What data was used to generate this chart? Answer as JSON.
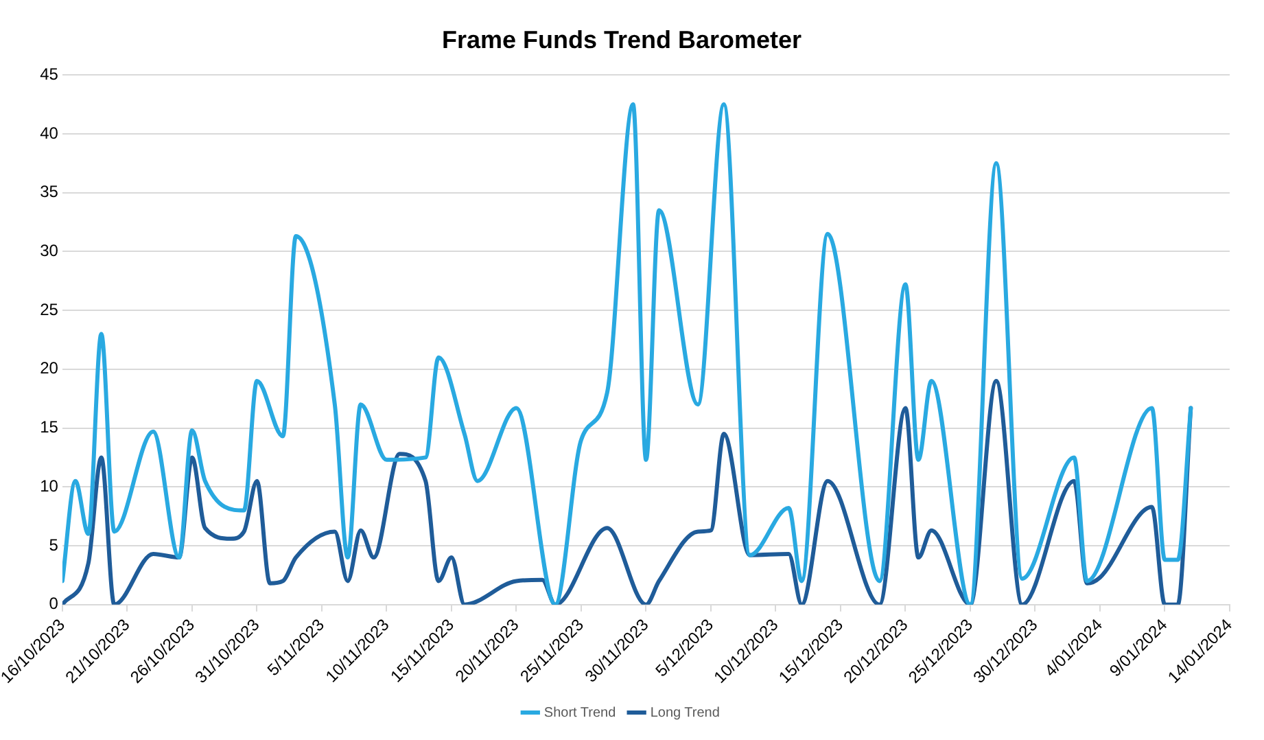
{
  "chart_data": {
    "type": "line",
    "title": "Frame Funds Trend Barometer",
    "xlim": [
      "2023-10-16",
      "2024-01-14"
    ],
    "xticks": [
      {
        "value": "2023-10-16",
        "label": "16/10/2023"
      },
      {
        "value": "2023-10-21",
        "label": "21/10/2023"
      },
      {
        "value": "2023-10-26",
        "label": "26/10/2023"
      },
      {
        "value": "2023-10-31",
        "label": "31/10/2023"
      },
      {
        "value": "2023-11-05",
        "label": "5/11/2023"
      },
      {
        "value": "2023-11-10",
        "label": "10/11/2023"
      },
      {
        "value": "2023-11-15",
        "label": "15/11/2023"
      },
      {
        "value": "2023-11-20",
        "label": "20/11/2023"
      },
      {
        "value": "2023-11-25",
        "label": "25/11/2023"
      },
      {
        "value": "2023-11-30",
        "label": "30/11/2023"
      },
      {
        "value": "2023-12-05",
        "label": "5/12/2023"
      },
      {
        "value": "2023-12-10",
        "label": "10/12/2023"
      },
      {
        "value": "2023-12-15",
        "label": "15/12/2023"
      },
      {
        "value": "2023-12-20",
        "label": "20/12/2023"
      },
      {
        "value": "2023-12-25",
        "label": "25/12/2023"
      },
      {
        "value": "2023-12-30",
        "label": "30/12/2023"
      },
      {
        "value": "2024-01-04",
        "label": "4/01/2024"
      },
      {
        "value": "2024-01-09",
        "label": "9/01/2024"
      },
      {
        "value": "2024-01-14",
        "label": "14/01/2024"
      }
    ],
    "ylim": [
      0,
      45
    ],
    "yticks": [
      0,
      5,
      10,
      15,
      20,
      25,
      30,
      35,
      40,
      45
    ],
    "grid": "y",
    "legend": "bottom",
    "marker": "none",
    "line_style": "solid",
    "series": [
      {
        "name": "Short Trend",
        "color": "#29a9e1",
        "x": [
          "2023-10-16",
          "2023-10-17",
          "2023-10-18",
          "2023-10-19",
          "2023-10-20",
          "2023-10-23",
          "2023-10-25",
          "2023-10-26",
          "2023-10-27",
          "2023-10-30",
          "2023-10-31",
          "2023-11-02",
          "2023-11-03",
          "2023-11-06",
          "2023-11-07",
          "2023-11-08",
          "2023-11-10",
          "2023-11-13",
          "2023-11-14",
          "2023-11-16",
          "2023-11-17",
          "2023-11-20",
          "2023-11-23",
          "2023-11-25",
          "2023-11-27",
          "2023-11-29",
          "2023-11-30",
          "2023-12-01",
          "2023-12-04",
          "2023-12-06",
          "2023-12-08",
          "2023-12-11",
          "2023-12-12",
          "2023-12-14",
          "2023-12-18",
          "2023-12-20",
          "2023-12-21",
          "2023-12-22",
          "2023-12-25",
          "2023-12-27",
          "2023-12-29",
          "2024-01-02",
          "2024-01-03",
          "2024-01-08",
          "2024-01-09",
          "2024-01-10",
          "2024-01-11"
        ],
        "values": [
          2,
          10.5,
          6,
          23,
          6.2,
          14.7,
          4,
          14.8,
          10.5,
          8,
          19,
          14.3,
          31.3,
          17,
          4,
          17,
          12.3,
          12.5,
          21,
          14.5,
          10.5,
          16.7,
          0,
          14,
          18,
          42.5,
          12.3,
          33.5,
          17,
          42.5,
          4.2,
          8.2,
          2,
          31.5,
          2,
          27.2,
          12.3,
          19,
          0,
          37.5,
          2.2,
          12.5,
          2,
          16.7,
          3.8,
          3.8,
          16.7
        ]
      },
      {
        "name": "Long Trend",
        "color": "#1f5c99",
        "x": [
          "2023-10-16",
          "2023-10-18",
          "2023-10-19",
          "2023-10-20",
          "2023-10-23",
          "2023-10-25",
          "2023-10-26",
          "2023-10-27",
          "2023-10-29",
          "2023-10-30",
          "2023-10-31",
          "2023-11-01",
          "2023-11-02",
          "2023-11-03",
          "2023-11-06",
          "2023-11-07",
          "2023-11-08",
          "2023-11-09",
          "2023-11-11",
          "2023-11-13",
          "2023-11-14",
          "2023-11-15",
          "2023-11-16",
          "2023-11-20",
          "2023-11-22",
          "2023-11-23",
          "2023-11-27",
          "2023-11-30",
          "2023-12-01",
          "2023-12-04",
          "2023-12-05",
          "2023-12-06",
          "2023-12-08",
          "2023-12-11",
          "2023-12-12",
          "2023-12-14",
          "2023-12-18",
          "2023-12-20",
          "2023-12-21",
          "2023-12-22",
          "2023-12-25",
          "2023-12-27",
          "2023-12-29",
          "2024-01-02",
          "2024-01-03",
          "2024-01-04",
          "2024-01-08",
          "2024-01-09",
          "2024-01-10",
          "2024-01-11"
        ],
        "values": [
          0,
          3.5,
          12.5,
          0,
          4.3,
          4,
          12.5,
          6.5,
          5.6,
          6.2,
          10.5,
          1.8,
          2,
          4,
          6.2,
          2,
          6.3,
          4,
          12.8,
          10.5,
          2,
          4,
          0,
          2,
          2.1,
          0,
          6.5,
          0,
          2,
          6.2,
          6.3,
          14.5,
          4.2,
          4.3,
          0,
          10.5,
          0,
          16.7,
          4,
          6.3,
          0,
          19,
          0,
          10.5,
          1.8,
          2.3,
          8.3,
          0,
          0,
          16.7
        ]
      }
    ]
  }
}
